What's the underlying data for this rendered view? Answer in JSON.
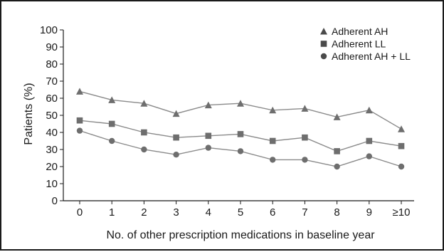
{
  "chart_data": {
    "type": "line",
    "xlabel": "No. of other prescription medications in baseline year",
    "ylabel": "Patients (%)",
    "ylim": [
      0,
      100
    ],
    "yticks": [
      "0",
      "10",
      "20",
      "30",
      "40",
      "50",
      "60",
      "70",
      "80",
      "90",
      "100"
    ],
    "categories": [
      "0",
      "1",
      "2",
      "3",
      "4",
      "5",
      "6",
      "7",
      "8",
      "9",
      "≥10"
    ],
    "grid": false,
    "legend_position": "top-right",
    "series": [
      {
        "name": "Adherent AH",
        "marker": "triangle",
        "color": "#6e6e6e",
        "values": [
          64,
          59,
          57,
          51,
          56,
          57,
          53,
          54,
          49,
          53,
          42
        ]
      },
      {
        "name": "Adherent LL",
        "marker": "square",
        "color": "#6e6e6e",
        "values": [
          47,
          45,
          40,
          37,
          38,
          39,
          35,
          37,
          29,
          35,
          32
        ]
      },
      {
        "name": "Adherent AH + LL",
        "marker": "circle",
        "color": "#6e6e6e",
        "values": [
          41,
          35,
          30,
          27,
          31,
          29,
          24,
          24,
          20,
          26,
          20
        ]
      }
    ]
  }
}
